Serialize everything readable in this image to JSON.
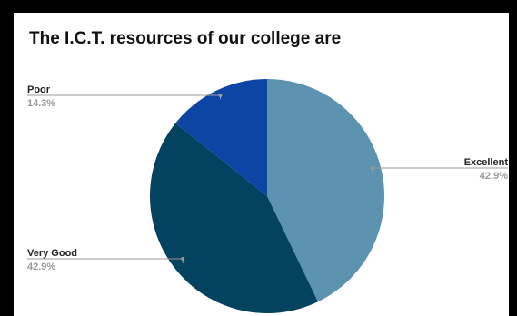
{
  "chart_data": {
    "type": "pie",
    "title": "The I.C.T. resources of our college are",
    "categories": [
      "Excellent",
      "Very Good",
      "Poor"
    ],
    "values": [
      42.9,
      42.9,
      14.3
    ],
    "value_labels": [
      "42.9%",
      "42.9%",
      "14.3%"
    ],
    "colors": [
      "#5b93b1",
      "#04435f",
      "#0d45a5"
    ],
    "legend": "none",
    "start_angle": "12 o'clock",
    "direction": "clockwise"
  }
}
